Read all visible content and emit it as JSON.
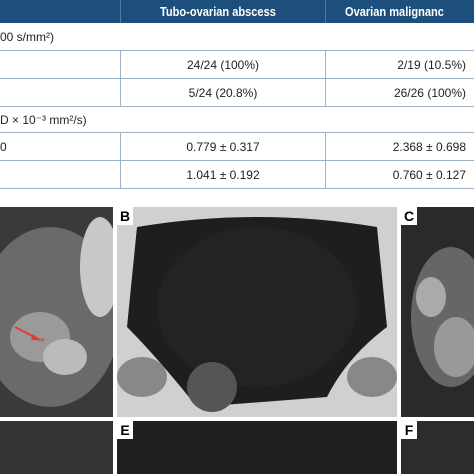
{
  "table": {
    "columns": [
      "Tubo-ovarian abscess",
      "Ovarian malignanc"
    ],
    "sections": [
      "00 s/mm²)",
      "D × 10⁻³ mm²/s)"
    ],
    "rows": [
      {
        "label": "",
        "cells": [
          "24/24 (100%)",
          "2/19 (10.5%)"
        ]
      },
      {
        "label": "",
        "cells": [
          "5/24 (20.8%)",
          "26/26 (100%)"
        ]
      },
      {
        "label": "0",
        "cells": [
          "0.779 ± 0.317",
          "2.368 ± 0.698"
        ]
      },
      {
        "label": "",
        "cells": [
          "1.041 ± 0.192",
          "0.760 ± 0.127"
        ]
      }
    ]
  },
  "figure": {
    "panels": [
      "B",
      "C",
      "E",
      "F"
    ]
  }
}
